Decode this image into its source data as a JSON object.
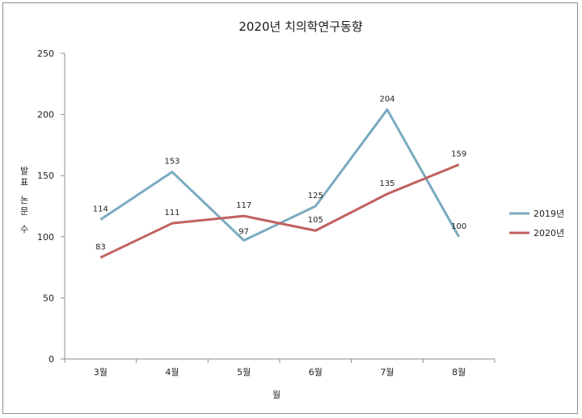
{
  "chart_data": {
    "type": "line",
    "title": "2020년 치의학연구동향",
    "xlabel": "월",
    "ylabel": "발표 논문 수",
    "categories": [
      "3월",
      "4월",
      "5월",
      "6월",
      "7월",
      "8월"
    ],
    "ylim": [
      0,
      250
    ],
    "yticks": [
      0,
      50,
      100,
      150,
      200,
      250
    ],
    "grid": false,
    "legend_position": "right",
    "series": [
      {
        "name": "2019년",
        "color": "#7aabbf",
        "values": [
          114,
          153,
          97,
          125,
          204,
          100
        ]
      },
      {
        "name": "2020년",
        "color": "#c0625f",
        "values": [
          83,
          111,
          117,
          105,
          135,
          159
        ]
      }
    ]
  }
}
